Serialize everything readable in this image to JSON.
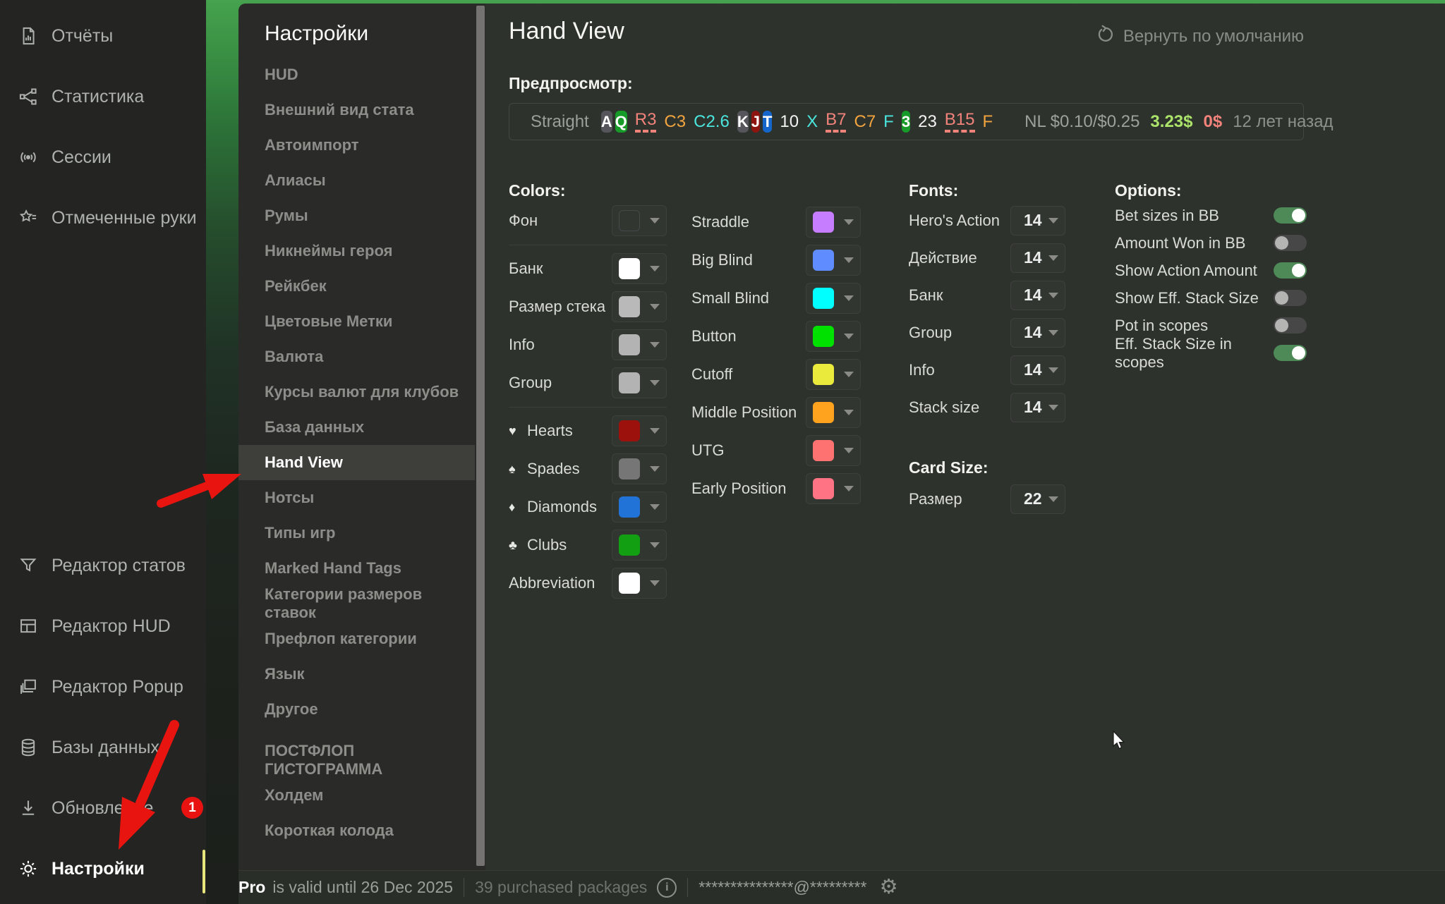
{
  "accents": {
    "annotation_arrow": "#e81410",
    "badge": "#e81311",
    "active_indicator": "#e6e67c",
    "toggle_on": "#4e8a58"
  },
  "left_sidebar": {
    "top_items": [
      {
        "label": "Отчёты",
        "icon": "report-icon"
      },
      {
        "label": "Статистика",
        "icon": "statistics-icon"
      },
      {
        "label": "Сессии",
        "icon": "sessions-icon"
      },
      {
        "label": "Отмеченные руки",
        "icon": "marked-hands-icon"
      }
    ],
    "bottom_items": [
      {
        "label": "Редактор статов",
        "icon": "stat-editor-icon"
      },
      {
        "label": "Редактор HUD",
        "icon": "hud-editor-icon"
      },
      {
        "label": "Редактор Popup",
        "icon": "popup-editor-icon"
      },
      {
        "label": "Базы данных",
        "icon": "databases-icon"
      },
      {
        "label": "Обновление",
        "icon": "update-icon",
        "badge": "1"
      },
      {
        "label": "Настройки",
        "icon": "settings-icon",
        "active": true
      }
    ]
  },
  "settings_menu": {
    "title": "Настройки",
    "items": [
      "HUD",
      "Внешний вид стата",
      "Автоимпорт",
      "Алиасы",
      "Румы",
      "Никнеймы героя",
      "Рейкбек",
      "Цветовые Метки",
      "Валюта",
      "Курсы валют для клубов",
      "База данных",
      "Hand View",
      "Нотсы",
      "Типы игр",
      "Marked Hand Tags",
      "Категории размеров ставок",
      "Префлоп категории",
      "Язык",
      "Другое"
    ],
    "selected": "Hand View",
    "section_header": "ПОСТФЛОП ГИСТОГРАММА",
    "section_items": [
      "Холдем",
      "Короткая колода"
    ]
  },
  "main": {
    "title": "Hand View",
    "reset_label": "Вернуть по умолчанию",
    "preview": {
      "label": "Предпросмотр:",
      "hand_name": "Straight",
      "tokens": [
        {
          "t": "card",
          "v": "A",
          "bg": "#55555b"
        },
        {
          "t": "card",
          "v": "Q",
          "bg": "#169a28"
        },
        {
          "t": "dashed",
          "v": "R3",
          "c": "#f2837b"
        },
        {
          "t": "text",
          "v": "C3",
          "c": "#f2a43e"
        },
        {
          "t": "text",
          "v": "C2.6",
          "c": "#4ae5dd"
        },
        {
          "t": "card",
          "v": "K",
          "bg": "#55555b"
        },
        {
          "t": "card",
          "v": "J",
          "bg": "#8e1410"
        },
        {
          "t": "card",
          "v": "T",
          "bg": "#1566cb"
        },
        {
          "t": "text",
          "v": "10",
          "c": "#f2f2f2"
        },
        {
          "t": "text",
          "v": "X",
          "c": "#4ae5dd"
        },
        {
          "t": "dashed",
          "v": "B7",
          "c": "#f2837b"
        },
        {
          "t": "text",
          "v": "C7",
          "c": "#f2a43e"
        },
        {
          "t": "text",
          "v": "F",
          "c": "#4ae5dd"
        },
        {
          "t": "card",
          "v": "3",
          "bg": "#169a28"
        },
        {
          "t": "text",
          "v": "23",
          "c": "#f2f2f2"
        },
        {
          "t": "dashed",
          "v": "B15",
          "c": "#f2837b"
        },
        {
          "t": "text",
          "v": "F",
          "c": "#f2a43e"
        }
      ],
      "stakes": "NL $0.10/$0.25",
      "won": "3.23$",
      "rake": "0$",
      "time_ago": "12 лет назад"
    },
    "colors": {
      "header": "Colors:",
      "col1": [
        {
          "label": "Фон",
          "swatch": "transparent",
          "divider_after": true
        },
        {
          "label": "Банк",
          "swatch": "#ffffff"
        },
        {
          "label": "Размер стека",
          "swatch": "#b9b9b9"
        },
        {
          "label": "Info",
          "swatch": "#b3b3b3"
        },
        {
          "label": "Group",
          "swatch": "#b3b3b3",
          "divider_after": true
        },
        {
          "label": "Hearts",
          "suit": "♥",
          "swatch": "#9c110c"
        },
        {
          "label": "Spades",
          "suit": "♠",
          "swatch": "#767676"
        },
        {
          "label": "Diamonds",
          "suit": "♦",
          "swatch": "#2273d8"
        },
        {
          "label": "Clubs",
          "suit": "♣",
          "swatch": "#12a012"
        },
        {
          "label": "Abbreviation",
          "swatch": "#ffffff"
        }
      ],
      "col2": [
        {
          "label": "Straddle",
          "swatch": "#c77dff"
        },
        {
          "label": "Big Blind",
          "swatch": "#5f8cff"
        },
        {
          "label": "Small Blind",
          "swatch": "#00ffff"
        },
        {
          "label": "Button",
          "swatch": "#00e100"
        },
        {
          "label": "Cutoff",
          "swatch": "#eaea3c"
        },
        {
          "label": "Middle Position",
          "swatch": "#ffa21e"
        },
        {
          "label": "UTG",
          "swatch": "#ff7272"
        },
        {
          "label": "Early Position",
          "swatch": "#ff7384"
        }
      ]
    },
    "fonts": {
      "header": "Fonts:",
      "rows": [
        {
          "label": "Hero's Action",
          "value": "14"
        },
        {
          "label": "Действие",
          "value": "14"
        },
        {
          "label": "Банк",
          "value": "14"
        },
        {
          "label": "Group",
          "value": "14"
        },
        {
          "label": "Info",
          "value": "14"
        },
        {
          "label": "Stack size",
          "value": "14"
        }
      ]
    },
    "card_size": {
      "header": "Card Size:",
      "rows": [
        {
          "label": "Размер",
          "value": "22"
        }
      ]
    },
    "options": {
      "header": "Options:",
      "toggles": [
        {
          "label": "Bet sizes in BB",
          "on": true
        },
        {
          "label": "Amount Won in BB",
          "on": false
        },
        {
          "label": "Show Action Amount",
          "on": true
        },
        {
          "label": "Show Eff. Stack Size",
          "on": false
        },
        {
          "label": "Pot in scopes",
          "on": false
        },
        {
          "label": "Eff. Stack Size in scopes",
          "on": true
        }
      ]
    }
  },
  "status_bar": {
    "plan": "Pro",
    "validity": "is valid until 26 Dec 2025",
    "packages": "39 purchased packages",
    "email_masked": "***************@*********"
  }
}
